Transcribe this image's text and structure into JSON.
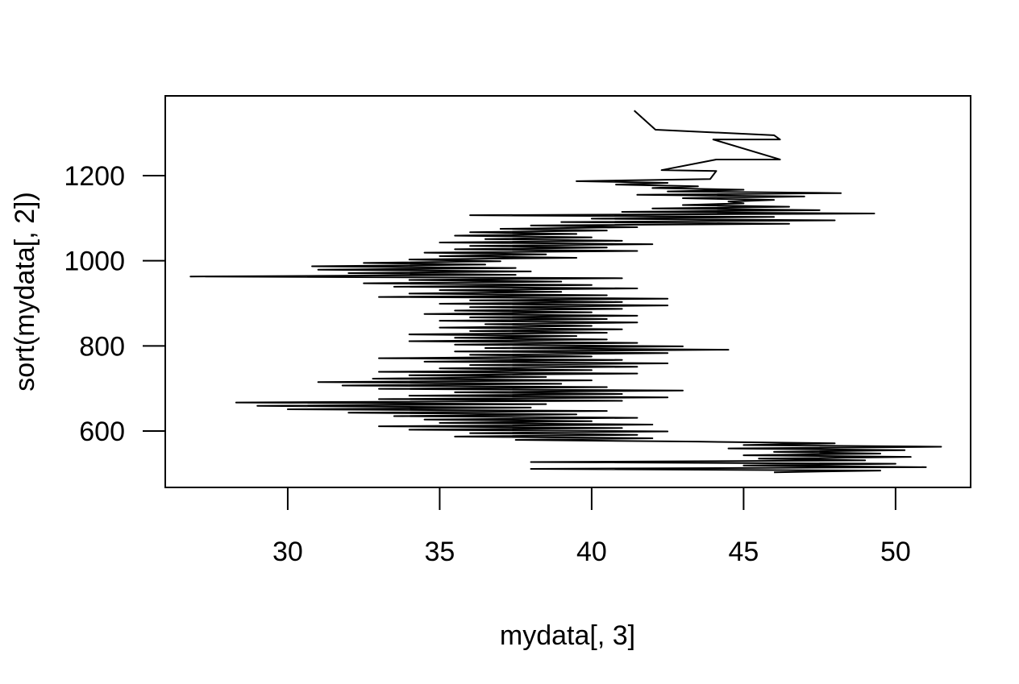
{
  "chart_data": {
    "type": "line",
    "x_label": "mydata[, 3]",
    "y_label": "sort(mydata[, 2])",
    "xlim": [
      25.97,
      52.47
    ],
    "ylim": [
      467.4,
      1387.5
    ],
    "xticks": [
      30,
      35,
      40,
      45,
      50
    ],
    "yticks": [
      600,
      800,
      1000,
      1200
    ],
    "x": [
      46,
      49.5,
      38,
      51,
      45,
      50,
      38,
      49,
      45.5,
      50.5,
      45,
      49.5,
      46,
      50.3,
      44.5,
      51.5,
      45,
      48,
      43.5,
      37.5,
      42,
      35.5,
      41.5,
      36,
      42.5,
      34,
      41,
      33,
      42,
      35,
      40,
      34.5,
      41.5,
      33.5,
      39.5,
      32,
      40.5,
      30,
      38,
      29,
      38.5,
      28.3,
      41,
      33,
      42.5,
      34,
      41,
      35.5,
      43,
      33,
      40.5,
      31.8,
      39,
      31,
      40,
      32.8,
      38.5,
      34,
      41.5,
      33,
      40,
      35,
      41.5,
      36,
      42.5,
      34.5,
      41,
      33,
      40,
      36,
      42.5,
      35.5,
      44.5,
      36.5,
      43,
      35.5,
      41.5,
      34,
      40.5,
      35.5,
      39.5,
      34,
      40.5,
      36,
      41,
      35,
      40,
      36.5,
      41.5,
      35,
      40.5,
      36,
      41.5,
      34.5,
      40,
      35.5,
      41,
      36,
      42.5,
      35,
      41,
      36,
      42.5,
      33,
      40.5,
      34,
      39,
      35,
      41.5,
      33.5,
      40,
      32.5,
      39,
      34,
      41,
      26.8,
      37.5,
      32,
      38,
      31,
      37.5,
      30.8,
      36.5,
      32.5,
      37,
      34,
      39.5,
      35,
      38.5,
      34.5,
      41.5,
      35.5,
      40.5,
      36,
      42,
      35,
      41,
      36.5,
      40,
      35.5,
      39.5,
      36,
      40.5,
      37,
      41.5,
      38,
      46.5,
      39,
      48,
      40,
      46,
      36,
      49.3,
      41,
      47.5,
      42,
      46.5,
      43,
      45,
      44.5,
      46,
      43,
      47,
      41.5,
      48.2,
      42.5,
      45,
      42,
      43.5,
      40.8,
      42.5,
      39.5,
      43.9,
      44.1,
      42.3,
      44.1,
      46.2,
      44.0,
      46.2,
      46.0,
      42.1,
      41.4
    ],
    "series": [
      {
        "name": "sort(mydata[, 2])",
        "color": "#000000",
        "values": [
          503,
          507,
          511,
          515,
          519,
          523,
          527,
          531,
          535,
          539,
          543,
          547,
          551,
          555,
          559,
          563,
          567,
          571,
          575,
          579,
          583,
          587,
          591,
          595,
          599,
          603,
          607,
          611,
          615,
          619,
          623,
          627,
          631,
          635,
          639,
          643,
          647,
          651,
          655,
          659,
          663,
          667,
          671,
          675,
          679,
          683,
          687,
          691,
          695,
          699,
          703,
          707,
          711,
          715,
          719,
          723,
          727,
          731,
          735,
          739,
          743,
          747,
          751,
          755,
          759,
          763,
          767,
          771,
          775,
          779,
          783,
          787,
          791,
          795,
          799,
          803,
          807,
          811,
          815,
          819,
          823,
          827,
          831,
          835,
          839,
          843,
          847,
          851,
          855,
          859,
          863,
          867,
          871,
          875,
          879,
          883,
          887,
          891,
          895,
          899,
          903,
          907,
          911,
          915,
          919,
          923,
          927,
          931,
          935,
          939,
          943,
          947,
          951,
          955,
          959,
          963,
          967,
          971,
          975,
          979,
          983,
          987,
          991,
          995,
          999,
          1003,
          1007,
          1011,
          1015,
          1019,
          1023,
          1027,
          1031,
          1035,
          1039,
          1043,
          1047,
          1051,
          1055,
          1059,
          1063,
          1067,
          1071,
          1075,
          1079,
          1083,
          1087,
          1091,
          1095,
          1099,
          1103,
          1107,
          1111,
          1115,
          1119,
          1123,
          1127,
          1131,
          1135,
          1139,
          1143,
          1147,
          1151,
          1155,
          1159,
          1163,
          1167,
          1171,
          1175,
          1179,
          1183,
          1187,
          1192,
          1211,
          1213,
          1238,
          1238,
          1285,
          1285,
          1295,
          1308,
          1353
        ]
      }
    ]
  }
}
